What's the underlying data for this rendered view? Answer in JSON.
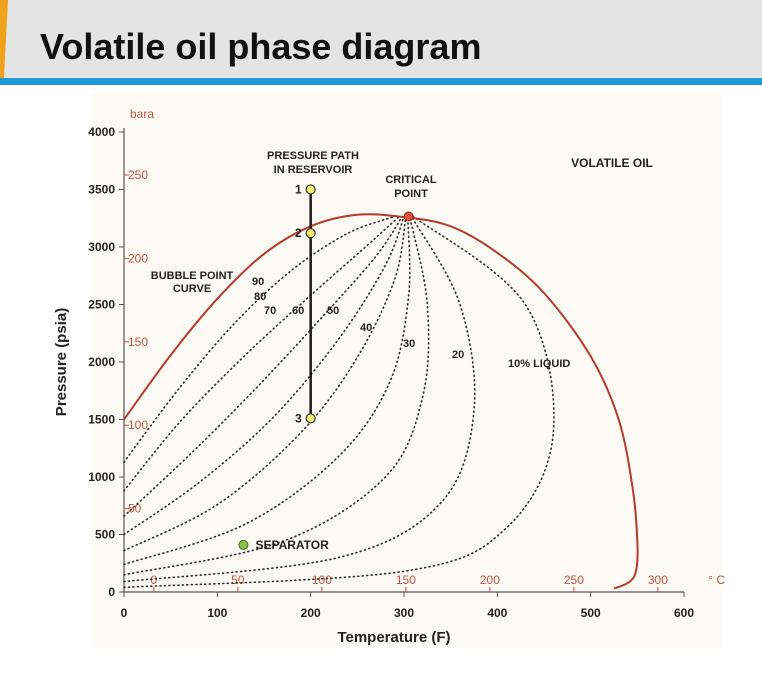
{
  "page": {
    "title": "Volatile oil phase diagram"
  },
  "chart_data": {
    "type": "line",
    "title": "VOLATILE OIL",
    "xlabel": "Temperature (F)",
    "ylabel": "Pressure (psia)",
    "xlim": [
      0,
      600
    ],
    "ylim": [
      0,
      4000
    ],
    "x_ticks": [
      0,
      100,
      200,
      300,
      400,
      500,
      600
    ],
    "y_ticks": [
      0,
      500,
      1000,
      1500,
      2000,
      2500,
      3000,
      3500,
      4000
    ],
    "secondary_x": {
      "unit": "° C",
      "ticks": [
        0,
        50,
        100,
        150,
        200,
        250,
        300
      ]
    },
    "secondary_y": {
      "unit": "bara",
      "ticks": [
        50,
        100,
        150,
        200,
        250
      ]
    },
    "grid": false,
    "series": [
      {
        "name": "",
        "color": "#b53a2a",
        "x": [
          0,
          50,
          100,
          150,
          200,
          250,
          300,
          350,
          400,
          450,
          500,
          530,
          545,
          550,
          549,
          542,
          525
        ],
        "y": [
          1500,
          2060,
          2550,
          2940,
          3180,
          3280,
          3260,
          3180,
          2950,
          2600,
          2050,
          1500,
          900,
          450,
          200,
          90,
          30
        ]
      }
    ],
    "quality_lines": [
      {
        "label": "90",
        "x": [
          0,
          60,
          120,
          180,
          240,
          290
        ],
        "y": [
          1130,
          1780,
          2350,
          2800,
          3120,
          3265
        ]
      },
      {
        "label": "80",
        "x": [
          0,
          60,
          130,
          200,
          260,
          295
        ],
        "y": [
          880,
          1480,
          2060,
          2580,
          3010,
          3265
        ]
      },
      {
        "label": "70",
        "x": [
          0,
          70,
          140,
          210,
          270,
          298
        ],
        "y": [
          660,
          1190,
          1760,
          2370,
          2920,
          3265
        ]
      },
      {
        "label": "60",
        "x": [
          0,
          80,
          160,
          230,
          280,
          300
        ],
        "y": [
          500,
          950,
          1520,
          2200,
          2840,
          3265
        ]
      },
      {
        "label": "50",
        "x": [
          0,
          100,
          190,
          250,
          290,
          302
        ],
        "y": [
          360,
          760,
          1390,
          2040,
          2720,
          3265
        ]
      },
      {
        "label": "40",
        "x": [
          0,
          130,
          230,
          285,
          305,
          304
        ],
        "y": [
          240,
          590,
          1180,
          1830,
          2580,
          3265
        ]
      },
      {
        "label": "30",
        "x": [
          0,
          170,
          280,
          320,
          325,
          306
        ],
        "y": [
          150,
          440,
          1000,
          1700,
          2500,
          3265
        ]
      },
      {
        "label": "20",
        "x": [
          0,
          230,
          340,
          375,
          360,
          308
        ],
        "y": [
          90,
          300,
          780,
          1580,
          2500,
          3265
        ]
      },
      {
        "label": "10% LIQUID",
        "x": [
          0,
          300,
          410,
          460,
          430,
          310
        ],
        "y": [
          40,
          180,
          560,
          1380,
          2500,
          3265
        ]
      }
    ],
    "critical_point": {
      "label_line1": "CRITICAL",
      "label_line2": "POINT",
      "x": 305,
      "y": 3265
    },
    "pressure_path": {
      "label_line1": "PRESSURE PATH",
      "label_line2": "IN RESERVOIR",
      "x": 200,
      "points": [
        {
          "label": "1",
          "y": 3500
        },
        {
          "label": "2",
          "y": 3120
        },
        {
          "label": "3",
          "y": 1510
        }
      ]
    },
    "separator": {
      "label": "SEPARATOR",
      "x": 128,
      "y": 410
    },
    "annotations": {
      "bubble_point_line1": "BUBBLE POINT",
      "bubble_point_line2": "CURVE"
    },
    "colors": {
      "envelope": "#b53a2a",
      "metric": "#c0533a",
      "path": "#1a1a1a",
      "point_fill": "#f7ee72",
      "critical_fill": "#e1533a",
      "separator_fill": "#8bc34a",
      "plot_bg": "#fbfaf5"
    }
  }
}
